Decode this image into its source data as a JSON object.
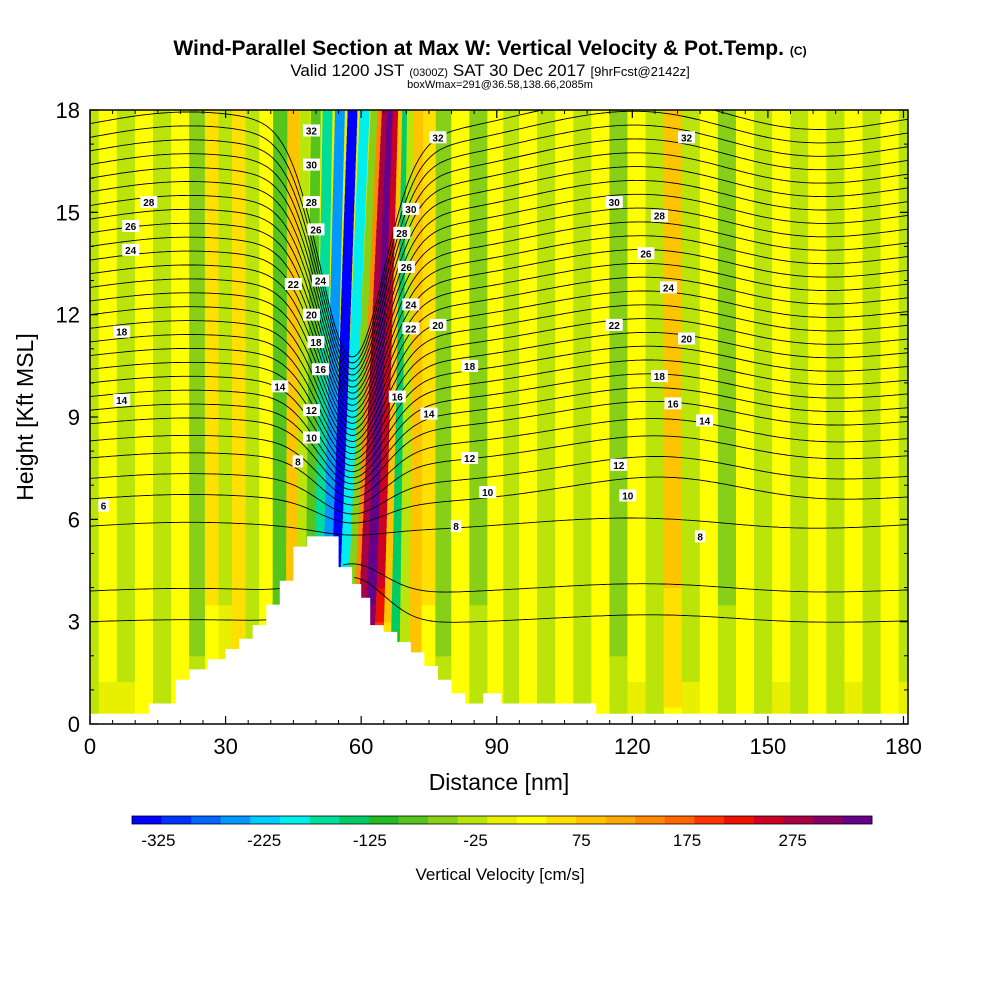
{
  "header": {
    "title": "Wind-Parallel Section at Max W: Vertical Velocity & Pot.Temp.",
    "title_units": "(C)",
    "valid_prefix": "Valid 1200 JST",
    "valid_zulu": "(0300Z)",
    "valid_date": "SAT 30 Dec 2017",
    "forecast": "[9hrFcst@2142z]",
    "box_info": "boxWmax=291@36.58,138.66,2085m"
  },
  "chart_data": {
    "type": "heatmap",
    "xlabel": "Distance [nm]",
    "ylabel": "Height [Kft MSL]",
    "xlim": [
      0,
      181
    ],
    "ylim": [
      0,
      18
    ],
    "x_ticks": [
      0,
      30,
      60,
      90,
      120,
      150,
      180
    ],
    "x_tick_labels": [
      "0",
      "30",
      "60",
      "90",
      "120",
      "150",
      "180"
    ],
    "y_ticks": [
      0,
      3,
      6,
      9,
      12,
      15,
      18
    ],
    "y_tick_labels": [
      "0",
      "3",
      "6",
      "9",
      "12",
      "15",
      "18"
    ],
    "colorbar": {
      "label": "Vertical Velocity [cm/s]",
      "min": -350,
      "max": 350,
      "step": 25,
      "tick_values": [
        -325,
        -225,
        -125,
        -25,
        75,
        175,
        275
      ],
      "tick_labels": [
        "-325",
        "-225",
        "-125",
        "-25",
        "75",
        "175",
        "275"
      ],
      "colors": [
        "#0000ff",
        "#0033ff",
        "#0066ff",
        "#0099ff",
        "#00ccff",
        "#00eeee",
        "#00dd99",
        "#00cc66",
        "#22bb22",
        "#55c41c",
        "#88d018",
        "#bbe40a",
        "#e8f000",
        "#ffff00",
        "#ffe000",
        "#ffc400",
        "#ffa800",
        "#ff8800",
        "#ff6600",
        "#ff3300",
        "#ee1100",
        "#cc0022",
        "#aa0044",
        "#880066",
        "#660088"
      ]
    },
    "vertical_velocity_columns": [
      {
        "x": 0,
        "w": -25
      },
      {
        "x": 4,
        "w": 20
      },
      {
        "x": 8,
        "w": -20
      },
      {
        "x": 12,
        "w": 30
      },
      {
        "x": 16,
        "w": -40
      },
      {
        "x": 20,
        "w": 30
      },
      {
        "x": 24,
        "w": -55
      },
      {
        "x": 27,
        "w": 45
      },
      {
        "x": 30,
        "w": -15
      },
      {
        "x": 33,
        "w": 65
      },
      {
        "x": 36,
        "w": -25
      },
      {
        "x": 39,
        "w": 20
      },
      {
        "x": 42,
        "w": -90
      },
      {
        "x": 45,
        "w": 95
      },
      {
        "x": 47,
        "w": -20
      },
      {
        "x": 49,
        "w": -80
      },
      {
        "x": 51,
        "w": -170
      },
      {
        "x": 53,
        "w": -260
      },
      {
        "x": 55,
        "w": -330
      },
      {
        "x": 57,
        "w": -200
      },
      {
        "x": 59,
        "w": -60
      },
      {
        "x": 60,
        "w": 150
      },
      {
        "x": 61,
        "w": 290
      },
      {
        "x": 63,
        "w": 340
      },
      {
        "x": 65,
        "w": 240
      },
      {
        "x": 66.5,
        "w": 80
      },
      {
        "x": 68,
        "w": -150
      },
      {
        "x": 70,
        "w": -40
      },
      {
        "x": 72,
        "w": 90
      },
      {
        "x": 75,
        "w": 45
      },
      {
        "x": 78,
        "w": -55
      },
      {
        "x": 82,
        "w": 30
      },
      {
        "x": 86,
        "w": -45
      },
      {
        "x": 90,
        "w": 40
      },
      {
        "x": 93,
        "w": -30
      },
      {
        "x": 97,
        "w": 30
      },
      {
        "x": 101,
        "w": -40
      },
      {
        "x": 105,
        "w": 25
      },
      {
        "x": 109,
        "w": -35
      },
      {
        "x": 113,
        "w": 30
      },
      {
        "x": 117,
        "w": -55
      },
      {
        "x": 121,
        "w": 20
      },
      {
        "x": 125,
        "w": -40
      },
      {
        "x": 129,
        "w": 70
      },
      {
        "x": 133,
        "w": -20
      },
      {
        "x": 137,
        "w": 30
      },
      {
        "x": 141,
        "w": -45
      },
      {
        "x": 145,
        "w": 25
      },
      {
        "x": 149,
        "w": -40
      },
      {
        "x": 153,
        "w": 20
      },
      {
        "x": 157,
        "w": -35
      },
      {
        "x": 161,
        "w": 30
      },
      {
        "x": 165,
        "w": -40
      },
      {
        "x": 169,
        "w": 20
      },
      {
        "x": 173,
        "w": -35
      },
      {
        "x": 177,
        "w": 35
      },
      {
        "x": 181,
        "w": -20
      }
    ],
    "terrain": {
      "x": [
        0,
        13,
        13,
        19,
        19,
        22,
        22,
        26,
        26,
        30,
        30,
        33,
        33,
        36,
        36,
        39,
        39,
        42,
        42,
        45,
        45,
        48,
        48,
        52,
        52,
        55,
        55,
        58,
        58,
        60,
        60,
        62,
        62,
        65,
        65,
        68,
        68,
        71,
        71,
        74,
        74,
        77,
        77,
        80,
        80,
        83,
        83,
        87,
        87,
        91,
        91,
        112,
        112,
        114,
        114,
        181
      ],
      "height_kft": [
        0.3,
        0.3,
        0.6,
        0.6,
        1.3,
        1.3,
        1.6,
        1.6,
        1.9,
        1.9,
        2.2,
        2.2,
        2.5,
        2.5,
        2.9,
        2.9,
        3.5,
        3.5,
        4.2,
        4.2,
        5.2,
        5.2,
        5.5,
        5.5,
        5.5,
        5.5,
        4.6,
        4.6,
        4.1,
        4.1,
        3.7,
        3.7,
        2.9,
        2.9,
        2.7,
        2.7,
        2.4,
        2.4,
        2.1,
        2.1,
        1.7,
        1.7,
        1.3,
        1.3,
        0.9,
        0.9,
        0.6,
        0.6,
        0.9,
        0.9,
        0.6,
        0.6,
        0.3,
        0.3,
        0.3,
        0.3
      ]
    },
    "theta_contours": {
      "levels": [
        4,
        5,
        6,
        7,
        8,
        9,
        10,
        11,
        12,
        13,
        14,
        15,
        16,
        17,
        18,
        19,
        20,
        21,
        22,
        23,
        24,
        25,
        26,
        27,
        28,
        29,
        30,
        31,
        32,
        33
      ],
      "base_height_kft": {
        "4": 3.0,
        "5": 3.9,
        "6": 5.8,
        "7": 6.6,
        "8": 7.2,
        "9": 7.8,
        "10": 8.3,
        "11": 8.8,
        "12": 9.2,
        "13": 9.6,
        "14": 10.0,
        "15": 10.4,
        "16": 10.8,
        "17": 11.2,
        "18": 11.6,
        "19": 12.0,
        "20": 12.4,
        "21": 12.8,
        "22": 13.2,
        "23": 13.6,
        "24": 14.0,
        "25": 14.4,
        "26": 14.8,
        "27": 15.2,
        "28": 15.6,
        "29": 16.0,
        "30": 16.4,
        "31": 16.8,
        "32": 17.2,
        "33": 17.6
      },
      "labels": [
        {
          "level": 6,
          "text": "6",
          "x": 3,
          "y": 6.4
        },
        {
          "level": 14,
          "text": "14",
          "x": 7,
          "y": 9.5
        },
        {
          "level": 18,
          "text": "18",
          "x": 7,
          "y": 11.5
        },
        {
          "level": 24,
          "text": "24",
          "x": 9,
          "y": 13.9
        },
        {
          "level": 26,
          "text": "26",
          "x": 9,
          "y": 14.6
        },
        {
          "level": 28,
          "text": "28",
          "x": 13,
          "y": 15.3
        },
        {
          "level": 8,
          "text": "8",
          "x": 46,
          "y": 7.7
        },
        {
          "level": 10,
          "text": "10",
          "x": 49,
          "y": 8.4
        },
        {
          "level": 12,
          "text": "12",
          "x": 49,
          "y": 9.2
        },
        {
          "level": 14,
          "text": "14",
          "x": 42,
          "y": 9.9
        },
        {
          "level": 16,
          "text": "16",
          "x": 51,
          "y": 10.4
        },
        {
          "level": 18,
          "text": "18",
          "x": 50,
          "y": 11.2
        },
        {
          "level": 20,
          "text": "20",
          "x": 49,
          "y": 12.0
        },
        {
          "level": 22,
          "text": "22",
          "x": 45,
          "y": 12.9
        },
        {
          "level": 24,
          "text": "24",
          "x": 51,
          "y": 13.0
        },
        {
          "level": 26,
          "text": "26",
          "x": 50,
          "y": 14.5
        },
        {
          "level": 28,
          "text": "28",
          "x": 49,
          "y": 15.3
        },
        {
          "level": 30,
          "text": "30",
          "x": 49,
          "y": 16.4
        },
        {
          "level": 32,
          "text": "32",
          "x": 49,
          "y": 17.4
        },
        {
          "level": 16,
          "text": "16",
          "x": 68,
          "y": 9.6
        },
        {
          "level": 14,
          "text": "14",
          "x": 75,
          "y": 9.1
        },
        {
          "level": 22,
          "text": "22",
          "x": 71,
          "y": 11.6
        },
        {
          "level": 24,
          "text": "24",
          "x": 71,
          "y": 12.3
        },
        {
          "level": 26,
          "text": "26",
          "x": 70,
          "y": 13.4
        },
        {
          "level": 28,
          "text": "28",
          "x": 69,
          "y": 14.4
        },
        {
          "level": 30,
          "text": "30",
          "x": 71,
          "y": 15.1
        },
        {
          "level": 20,
          "text": "20",
          "x": 77,
          "y": 11.7
        },
        {
          "level": 32,
          "text": "32",
          "x": 77,
          "y": 17.2
        },
        {
          "level": 18,
          "text": "18",
          "x": 84,
          "y": 10.5
        },
        {
          "level": 12,
          "text": "12",
          "x": 84,
          "y": 7.8
        },
        {
          "level": 10,
          "text": "10",
          "x": 88,
          "y": 6.8
        },
        {
          "level": 8,
          "text": "8",
          "x": 81,
          "y": 5.8
        },
        {
          "level": 22,
          "text": "22",
          "x": 116,
          "y": 11.7
        },
        {
          "level": 30,
          "text": "30",
          "x": 116,
          "y": 15.3
        },
        {
          "level": 28,
          "text": "28",
          "x": 126,
          "y": 14.9
        },
        {
          "level": 26,
          "text": "26",
          "x": 123,
          "y": 13.8
        },
        {
          "level": 24,
          "text": "24",
          "x": 128,
          "y": 12.8
        },
        {
          "level": 20,
          "text": "20",
          "x": 132,
          "y": 11.3
        },
        {
          "level": 18,
          "text": "18",
          "x": 126,
          "y": 10.2
        },
        {
          "level": 16,
          "text": "16",
          "x": 129,
          "y": 9.4
        },
        {
          "level": 14,
          "text": "14",
          "x": 136,
          "y": 8.9
        },
        {
          "level": 12,
          "text": "12",
          "x": 117,
          "y": 7.6
        },
        {
          "level": 10,
          "text": "10",
          "x": 119,
          "y": 6.7
        },
        {
          "level": 8,
          "text": "8",
          "x": 135,
          "y": 5.5
        },
        {
          "level": 32,
          "text": "32",
          "x": 132,
          "y": 17.2
        }
      ]
    }
  }
}
